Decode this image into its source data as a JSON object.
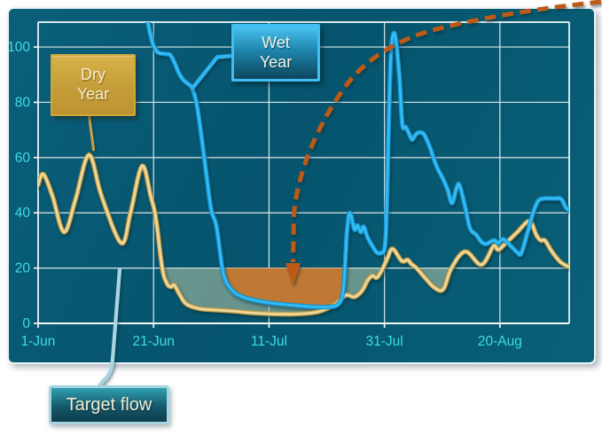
{
  "annotations": {
    "dry_year_box": {
      "lines": [
        "Dry",
        "Year"
      ],
      "fill": "#c59d38",
      "text_color": "#f6eed2"
    },
    "wet_year_box": {
      "lines": [
        "Wet",
        "Year"
      ],
      "fill": "#2a9fcc",
      "text_color": "#f0f5e6"
    },
    "target_flow_box": {
      "text": "Target flow",
      "fill": "#15596b",
      "text_color": "#f2ecd2"
    },
    "arrow": {
      "meaning": "points to period when wet-year flow falls below target",
      "color": "#bc5a16",
      "style": "dashed"
    }
  },
  "chart_data": {
    "type": "line",
    "title": "",
    "xlabel": "",
    "ylabel": "",
    "grid": true,
    "legend_position": "none",
    "background_color": "#07586f",
    "gridline_color": "#f4f8f4",
    "tick_label_color": "#3edce8",
    "x_axis": {
      "unit": "date",
      "range_days": [
        0,
        92
      ],
      "tick_days": [
        0,
        20,
        40,
        60,
        80
      ],
      "tick_labels": [
        "1-Jun",
        "21-Jun",
        "11-Jul",
        "31-Jul",
        "20-Aug"
      ]
    },
    "y_axis": {
      "range": [
        0,
        109
      ],
      "ticks": [
        0,
        20,
        40,
        60,
        80,
        100
      ],
      "tick_labels": [
        "0",
        "20",
        "40",
        "60",
        "80",
        "100"
      ]
    },
    "target_line": {
      "value": 20,
      "style": "dotted",
      "color": "#2ce4ea"
    },
    "series": [
      {
        "name": "Dry Year",
        "color": "#eedaa2",
        "edge_color": "#c79d43",
        "points": [
          [
            0,
            50
          ],
          [
            0.9,
            54
          ],
          [
            2.5,
            46
          ],
          [
            4.5,
            33
          ],
          [
            6.5,
            45
          ],
          [
            8.8,
            61
          ],
          [
            11,
            46
          ],
          [
            14.4,
            29
          ],
          [
            16,
            40
          ],
          [
            18,
            57
          ],
          [
            19.5,
            46
          ],
          [
            20.4,
            38
          ],
          [
            21.5,
            20
          ],
          [
            22.3,
            14.5
          ],
          [
            23,
            13.2
          ],
          [
            23.6,
            13.8
          ],
          [
            24.5,
            10.5
          ],
          [
            25.7,
            7
          ],
          [
            28,
            5.3
          ],
          [
            31,
            4.8
          ],
          [
            34,
            4.4
          ],
          [
            37,
            3.8
          ],
          [
            41,
            3.4
          ],
          [
            45,
            3.4
          ],
          [
            48.7,
            4.3
          ],
          [
            51.5,
            7
          ],
          [
            53.3,
            10.2
          ],
          [
            54.8,
            9.6
          ],
          [
            56.1,
            11.8
          ],
          [
            57.1,
            15.6
          ],
          [
            57.9,
            17.2
          ],
          [
            58.7,
            16.6
          ],
          [
            59.6,
            19.5
          ],
          [
            60.5,
            23.5
          ],
          [
            61.4,
            27
          ],
          [
            63,
            22.6
          ],
          [
            64,
            23
          ],
          [
            64.6,
            21.6
          ],
          [
            65.6,
            19.9
          ],
          [
            66.8,
            17
          ],
          [
            68.7,
            12.9
          ],
          [
            70.2,
            12.4
          ],
          [
            71.6,
            20
          ],
          [
            74,
            26
          ],
          [
            76.8,
            21.2
          ],
          [
            78.9,
            28
          ],
          [
            79.7,
            26.6
          ],
          [
            81,
            29
          ],
          [
            83,
            33
          ],
          [
            85.1,
            37
          ],
          [
            86.3,
            32
          ],
          [
            87.1,
            30
          ],
          [
            87.8,
            30
          ],
          [
            89,
            26
          ],
          [
            90.5,
            22.2
          ],
          [
            92,
            20.4
          ]
        ]
      },
      {
        "name": "Wet Year",
        "color": "#35bdf5",
        "edge_color": "#1793cf",
        "points": [
          [
            19,
            109
          ],
          [
            19.4,
            105
          ],
          [
            19.9,
            101
          ],
          [
            20.4,
            99
          ],
          [
            20.9,
            97.9
          ],
          [
            22,
            97.5
          ],
          [
            22.9,
            97.1
          ],
          [
            23.7,
            94
          ],
          [
            24.4,
            90.5
          ],
          [
            25.2,
            88
          ],
          [
            26,
            86.6
          ],
          [
            26.7,
            85
          ],
          [
            27.5,
            79
          ],
          [
            28.4,
            66
          ],
          [
            29.2,
            53
          ],
          [
            30,
            41
          ],
          [
            30.9,
            35
          ],
          [
            31.9,
            20
          ],
          [
            32.6,
            15
          ],
          [
            33.3,
            12.8
          ],
          [
            34.1,
            11
          ],
          [
            35.2,
            9.8
          ],
          [
            36.4,
            8.9
          ],
          [
            38.7,
            7.9
          ],
          [
            41,
            7.2
          ],
          [
            44,
            6.6
          ],
          [
            47,
            6.1
          ],
          [
            49.5,
            5.9
          ],
          [
            51.5,
            6.3
          ],
          [
            52.5,
            8.5
          ],
          [
            52.9,
            13
          ],
          [
            53.2,
            22
          ],
          [
            53.5,
            33
          ],
          [
            54,
            40
          ],
          [
            54.8,
            34
          ],
          [
            55.3,
            35.5
          ],
          [
            55.9,
            33
          ],
          [
            56.4,
            35
          ],
          [
            57.1,
            31
          ],
          [
            58.2,
            27
          ],
          [
            58.8,
            25.5
          ],
          [
            59.4,
            25.5
          ],
          [
            60,
            27
          ],
          [
            60.3,
            36
          ],
          [
            60.6,
            60
          ],
          [
            60.9,
            85
          ],
          [
            61.2,
            100
          ],
          [
            61.6,
            105
          ],
          [
            62,
            102
          ],
          [
            62.6,
            89
          ],
          [
            63.1,
            72
          ],
          [
            63.7,
            71
          ],
          [
            64.4,
            68
          ],
          [
            64.8,
            66.5
          ],
          [
            65.3,
            68
          ],
          [
            65.9,
            69
          ],
          [
            66.8,
            68.5
          ],
          [
            67.9,
            63.5
          ],
          [
            69,
            57
          ],
          [
            70.2,
            52
          ],
          [
            71,
            48
          ],
          [
            71.7,
            43.5
          ],
          [
            72.5,
            49
          ],
          [
            73,
            50
          ],
          [
            74,
            42
          ],
          [
            74.8,
            34.5
          ],
          [
            75.9,
            32
          ],
          [
            76.8,
            29.5
          ],
          [
            77.6,
            28.7
          ],
          [
            78.3,
            29.5
          ],
          [
            79.1,
            30
          ],
          [
            79.7,
            29
          ],
          [
            80.5,
            30.5
          ],
          [
            81.4,
            29
          ],
          [
            83,
            25.7
          ],
          [
            83.7,
            25.4
          ],
          [
            84.8,
            33
          ],
          [
            85.6,
            39
          ],
          [
            86.3,
            43
          ],
          [
            87.1,
            45
          ],
          [
            89.4,
            45.2
          ],
          [
            90.6,
            45
          ],
          [
            91.4,
            42
          ],
          [
            92,
            41
          ]
        ]
      }
    ],
    "shading": [
      {
        "series": "Dry Year",
        "below_value": 20,
        "color": "rgba(168,190,160,0.60)",
        "meaning": "dry-year flow below target"
      },
      {
        "series": "Wet Year",
        "below_value": 20,
        "color": "rgba(199,118,44,0.92)",
        "meaning": "wet-year flow below target"
      }
    ]
  }
}
